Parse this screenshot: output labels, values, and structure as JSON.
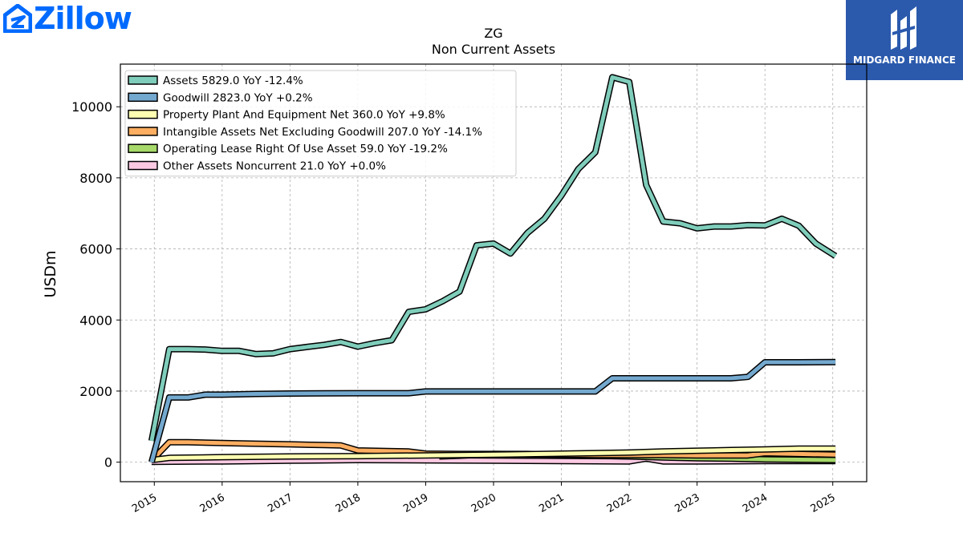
{
  "brand": {
    "zillow_wordmark": "Zillow",
    "midgard_text": "MIDGARD FINANCE",
    "zillow_color": "#006aff",
    "midgard_color": "#2b5aad"
  },
  "chart_data": {
    "type": "line",
    "title": "ZG",
    "subtitle": "Non Current  Assets",
    "ylabel": "USDm",
    "xlabel": "",
    "ylim": [
      -550,
      11200
    ],
    "xlim": [
      2014.5,
      2025.5
    ],
    "yticks": [
      0,
      2000,
      4000,
      6000,
      8000,
      10000
    ],
    "xticks": [
      "2015",
      "2016",
      "2017",
      "2018",
      "2019",
      "2020",
      "2021",
      "2022",
      "2023",
      "2024",
      "2025"
    ],
    "grid": true,
    "legend_position": "top-left",
    "series": [
      {
        "name": "Assets  5829.0 YoY -12.4%",
        "color": "#7fcdbb",
        "x": [
          2014.96,
          2015.22,
          2015.5,
          2015.75,
          2016.0,
          2016.25,
          2016.5,
          2016.75,
          2017.0,
          2017.25,
          2017.5,
          2017.75,
          2018.0,
          2018.25,
          2018.5,
          2018.75,
          2019.0,
          2019.25,
          2019.5,
          2019.75,
          2020.0,
          2020.25,
          2020.5,
          2020.75,
          2021.0,
          2021.25,
          2021.5,
          2021.75,
          2022.0,
          2022.25,
          2022.5,
          2022.75,
          2023.0,
          2023.25,
          2023.5,
          2023.75,
          2024.0,
          2024.25,
          2024.5,
          2024.75,
          2025.04
        ],
        "y": [
          600,
          3180,
          3180,
          3170,
          3130,
          3130,
          3040,
          3060,
          3180,
          3240,
          3300,
          3380,
          3250,
          3350,
          3430,
          4230,
          4300,
          4530,
          4800,
          6100,
          6150,
          5870,
          6450,
          6850,
          7500,
          8250,
          8720,
          10830,
          10700,
          7800,
          6770,
          6720,
          6580,
          6630,
          6630,
          6670,
          6660,
          6850,
          6650,
          6150,
          5800
        ]
      },
      {
        "name": "Goodwill  2823.0 YoY +0.2%",
        "color": "#74a9cf",
        "x": [
          2014.96,
          2015.22,
          2015.5,
          2015.75,
          2016.0,
          2016.5,
          2017.0,
          2017.5,
          2018.0,
          2018.75,
          2019.0,
          2019.5,
          2020.0,
          2020.5,
          2021.0,
          2021.5,
          2021.75,
          2022.0,
          2022.5,
          2023.0,
          2023.5,
          2023.75,
          2024.0,
          2024.5,
          2025.04
        ],
        "y": [
          0,
          1820,
          1820,
          1900,
          1900,
          1920,
          1930,
          1935,
          1940,
          1940,
          1990,
          1990,
          1990,
          1990,
          1990,
          1990,
          2360,
          2360,
          2360,
          2360,
          2360,
          2400,
          2810,
          2810,
          2815
        ]
      },
      {
        "name": "Property Plant And Equipment Net  360.0 YoY +9.8%",
        "color": "#ffffb2",
        "x": [
          2014.96,
          2015.22,
          2016.0,
          2017.0,
          2018.0,
          2019.0,
          2020.0,
          2021.0,
          2022.0,
          2022.5,
          2023.0,
          2023.5,
          2024.0,
          2024.5,
          2025.04
        ],
        "y": [
          60,
          120,
          140,
          160,
          170,
          190,
          210,
          240,
          270,
          300,
          320,
          340,
          360,
          380,
          380
        ]
      },
      {
        "name": "Intangible Assets Net Excluding Goodwill  207.0 YoY -14.1%",
        "color": "#fdae61",
        "x": [
          2014.96,
          2015.22,
          2015.5,
          2016.0,
          2016.5,
          2017.0,
          2017.5,
          2017.75,
          2018.0,
          2018.5,
          2018.75,
          2019.0,
          2019.5,
          2020.0,
          2020.5,
          2021.0,
          2021.5,
          2022.0,
          2022.5,
          2023.0,
          2023.5,
          2023.75,
          2024.0,
          2024.5,
          2025.04
        ],
        "y": [
          40,
          560,
          560,
          540,
          520,
          500,
          480,
          470,
          330,
          310,
          300,
          240,
          230,
          230,
          230,
          210,
          200,
          200,
          200,
          190,
          190,
          190,
          250,
          230,
          210
        ]
      },
      {
        "name": "Operating Lease Right Of Use Asset  59.0 YoY -19.2%",
        "color": "#a6d96a",
        "x": [
          2019.2,
          2019.5,
          2020.0,
          2020.5,
          2021.0,
          2021.5,
          2022.0,
          2022.5,
          2023.0,
          2023.5,
          2024.0,
          2024.5,
          2025.04
        ],
        "y": [
          160,
          180,
          230,
          220,
          200,
          180,
          160,
          130,
          110,
          100,
          80,
          70,
          60
        ]
      },
      {
        "name": "Other Assets Noncurrent  21.0 YoY +0.0%",
        "color": "#fbc9e2",
        "x": [
          2014.96,
          2015.5,
          2016.0,
          2017.0,
          2018.0,
          2019.0,
          2020.0,
          2021.0,
          2022.0,
          2022.25,
          2022.5,
          2023.0,
          2024.0,
          2025.04
        ],
        "y": [
          10,
          15,
          20,
          40,
          60,
          50,
          40,
          30,
          20,
          100,
          20,
          20,
          30,
          30
        ]
      }
    ]
  }
}
